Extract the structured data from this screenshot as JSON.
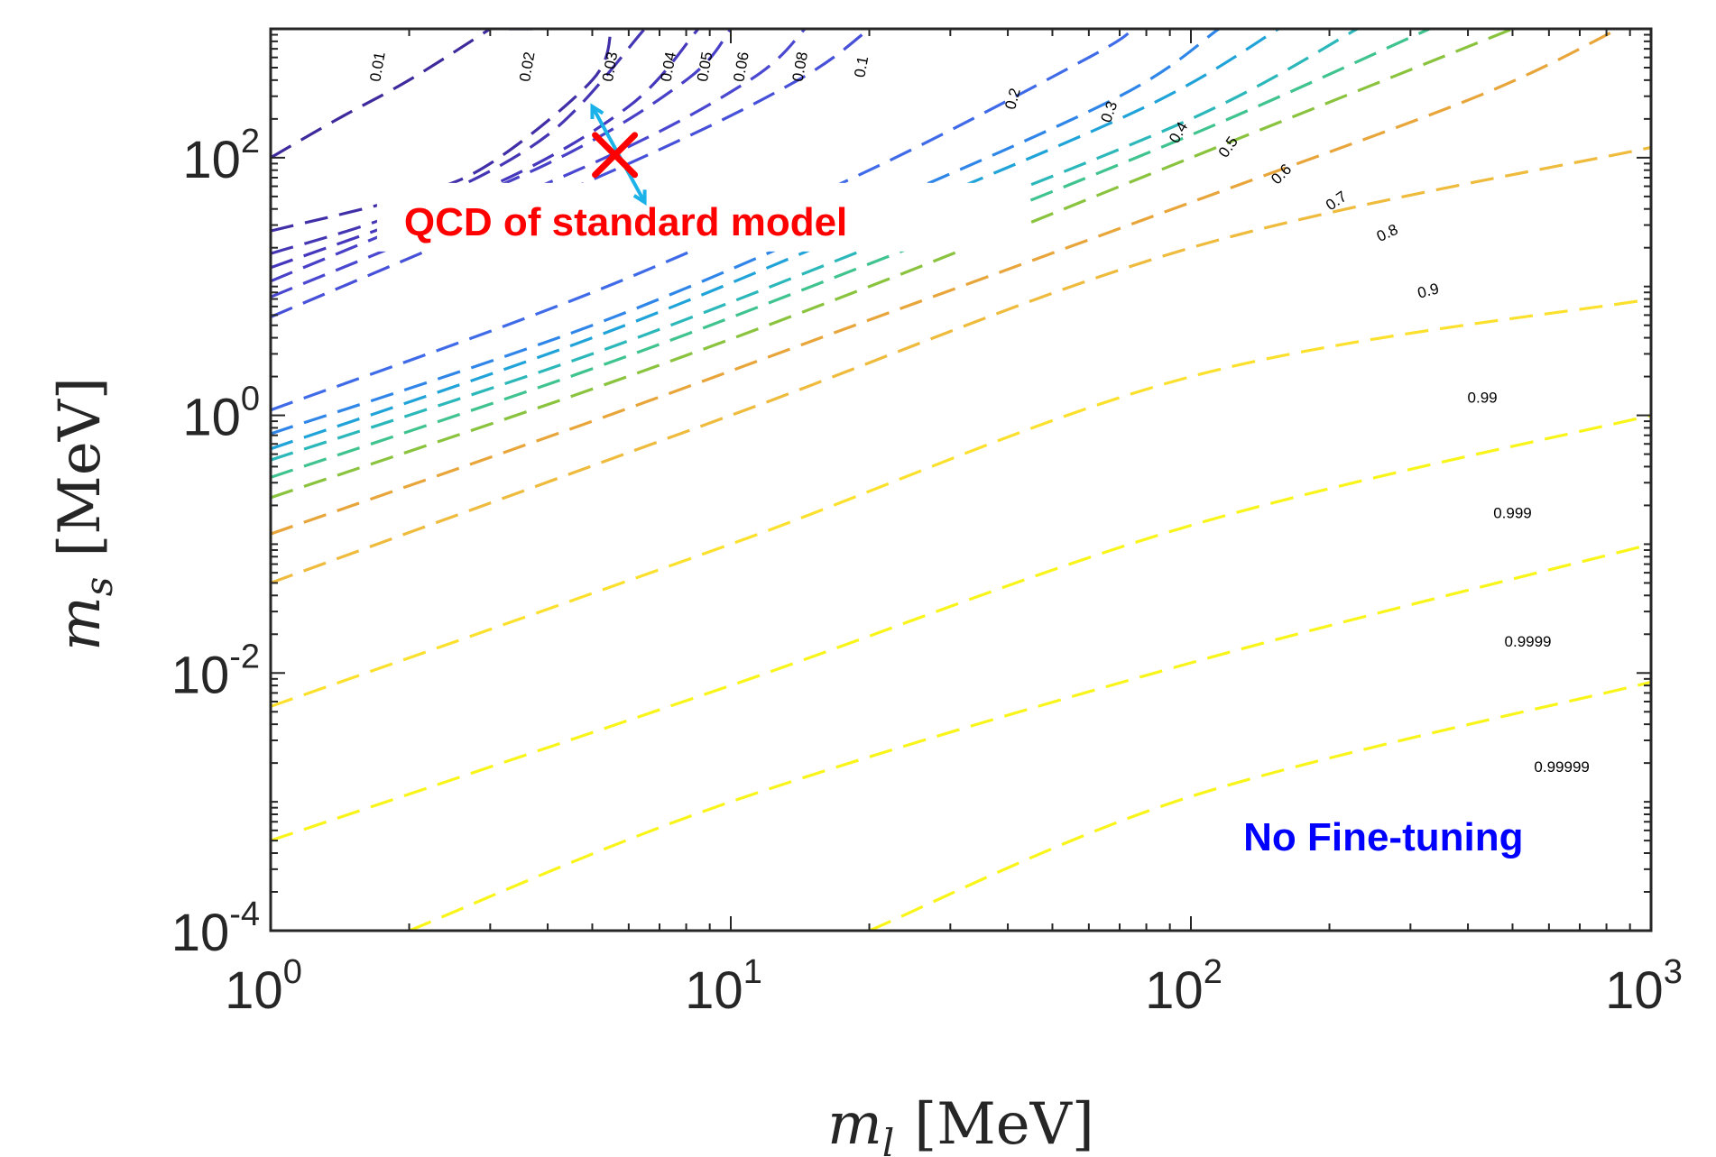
{
  "chart_data": {
    "type": "line",
    "style": "dashed contour lines on log-log axes",
    "xscale": "log",
    "yscale": "log",
    "xlim": [
      1,
      1000
    ],
    "ylim": [
      0.0001,
      1000
    ],
    "x_ticks": [
      {
        "value": 1,
        "base": "10",
        "exp": "0"
      },
      {
        "value": 10,
        "base": "10",
        "exp": "1"
      },
      {
        "value": 100,
        "base": "10",
        "exp": "2"
      },
      {
        "value": 1000,
        "base": "10",
        "exp": "3"
      }
    ],
    "y_ticks": [
      {
        "value": 0.0001,
        "base": "10",
        "exp": "-4"
      },
      {
        "value": 0.01,
        "base": "10",
        "exp": "-2"
      },
      {
        "value": 1,
        "base": "10",
        "exp": "0"
      },
      {
        "value": 100,
        "base": "10",
        "exp": "2"
      }
    ],
    "xlabel": {
      "symbol": "m",
      "sub": "l",
      "unit": "[MeV]"
    },
    "ylabel": {
      "symbol": "m",
      "sub": "s",
      "unit": "[MeV]"
    },
    "contours": [
      {
        "level": "0.01",
        "color": "#3e2a9c",
        "points": [
          [
            1,
            100
          ],
          [
            1.4,
            200
          ],
          [
            2,
            400
          ],
          [
            3,
            1000
          ]
        ]
      },
      {
        "level": "0.02",
        "color": "#3e2a9c",
        "points": [
          [
            3.3,
            1000
          ],
          [
            3.8,
            1000
          ]
        ]
      },
      {
        "level": "0.03",
        "color": "#412fa8",
        "points": [
          [
            1,
            27
          ],
          [
            2,
            50
          ],
          [
            3,
            90
          ],
          [
            5,
            400
          ],
          [
            5.5,
            1000
          ]
        ]
      },
      {
        "level": "0.04",
        "color": "#4536b4",
        "points": [
          [
            1,
            18
          ],
          [
            2,
            40
          ],
          [
            4,
            150
          ],
          [
            6.5,
            1000
          ]
        ]
      },
      {
        "level": "0.05",
        "color": "#4638bd",
        "points": [
          [
            1,
            14
          ],
          [
            3,
            60
          ],
          [
            6,
            250
          ],
          [
            8.5,
            1000
          ]
        ]
      },
      {
        "level": "0.06",
        "color": "#4840c6",
        "points": [
          [
            1,
            11
          ],
          [
            4,
            90
          ],
          [
            8,
            400
          ],
          [
            10,
            1000
          ]
        ]
      },
      {
        "level": "0.08",
        "color": "#4a48d0",
        "points": [
          [
            1,
            8.3
          ],
          [
            5,
            90
          ],
          [
            11,
            400
          ],
          [
            14.5,
            1000
          ]
        ]
      },
      {
        "level": "0.1",
        "color": "#4650d8",
        "points": [
          [
            1,
            5.8
          ],
          [
            6,
            90
          ],
          [
            14,
            400
          ],
          [
            20,
            1000
          ]
        ]
      },
      {
        "level": "0.2",
        "color": "#3f6ae8",
        "points": [
          [
            1,
            1.1
          ],
          [
            5,
            9
          ],
          [
            20,
            80
          ],
          [
            60,
            600
          ],
          [
            75,
            1000
          ]
        ]
      },
      {
        "level": "0.3",
        "color": "#2f86e8",
        "points": [
          [
            1,
            0.72
          ],
          [
            5,
            5
          ],
          [
            20,
            40
          ],
          [
            70,
            300
          ],
          [
            115,
            1000
          ]
        ]
      },
      {
        "level": "0.4",
        "color": "#1fa3d8",
        "points": [
          [
            1,
            0.55
          ],
          [
            5,
            4
          ],
          [
            20,
            30
          ],
          [
            80,
            250
          ],
          [
            155,
            1000
          ]
        ]
      },
      {
        "level": "0.5",
        "color": "#2cb8bb",
        "points": [
          [
            1,
            0.45
          ],
          [
            5,
            3
          ],
          [
            20,
            20
          ],
          [
            100,
            200
          ],
          [
            230,
            1000
          ]
        ]
      },
      {
        "level": "0.6",
        "color": "#3fc38f",
        "points": [
          [
            1,
            0.33
          ],
          [
            5,
            2.3
          ],
          [
            20,
            15
          ],
          [
            100,
            150
          ],
          [
            330,
            1000
          ]
        ]
      },
      {
        "level": "0.7",
        "color": "#8ac33e",
        "points": [
          [
            1,
            0.23
          ],
          [
            5,
            1.6
          ],
          [
            20,
            10
          ],
          [
            100,
            100
          ],
          [
            500,
            1000
          ]
        ]
      },
      {
        "level": "0.8",
        "color": "#e8a53a",
        "points": [
          [
            1,
            0.12
          ],
          [
            5,
            0.9
          ],
          [
            20,
            5.5
          ],
          [
            100,
            45
          ],
          [
            420,
            300
          ],
          [
            850,
            1000
          ]
        ]
      },
      {
        "level": "0.9",
        "color": "#efbb3c",
        "points": [
          [
            1,
            0.05
          ],
          [
            10,
            1
          ],
          [
            100,
            20
          ],
          [
            1000,
            120
          ]
        ]
      },
      {
        "level": "0.99",
        "color": "#fbe12d",
        "points": [
          [
            1,
            0.0055
          ],
          [
            10,
            0.1
          ],
          [
            100,
            2
          ],
          [
            1000,
            8
          ]
        ]
      },
      {
        "level": "0.999",
        "color": "#f9f51a",
        "points": [
          [
            1,
            0.0005
          ],
          [
            10,
            0.008
          ],
          [
            100,
            0.14
          ],
          [
            1000,
            1
          ]
        ]
      },
      {
        "level": "0.9999",
        "color": "#f9f51a",
        "points": [
          [
            2,
            0.0001
          ],
          [
            10,
            0.001
          ],
          [
            100,
            0.012
          ],
          [
            1000,
            0.1
          ]
        ]
      },
      {
        "level": "0.99999",
        "color": "#f9f51a",
        "points": [
          [
            20,
            0.0001
          ],
          [
            100,
            0.0011
          ],
          [
            1000,
            0.0085
          ]
        ]
      }
    ],
    "contour_labels": [
      {
        "text": "0.01",
        "x": 1.75,
        "y": 500,
        "angle": -80
      },
      {
        "text": "0.02",
        "x": 3.7,
        "y": 500,
        "angle": -80
      },
      {
        "text": "0.03",
        "x": 5.6,
        "y": 500,
        "angle": -80
      },
      {
        "text": "0.04",
        "x": 7.5,
        "y": 500,
        "angle": -80
      },
      {
        "text": "0.05",
        "x": 9,
        "y": 500,
        "angle": -80
      },
      {
        "text": "0.06",
        "x": 10.8,
        "y": 500,
        "angle": -80
      },
      {
        "text": "0.08",
        "x": 14.5,
        "y": 500,
        "angle": -80
      },
      {
        "text": "0.1",
        "x": 19.7,
        "y": 500,
        "angle": -80
      },
      {
        "text": "0.2",
        "x": 42,
        "y": 280,
        "angle": -75
      },
      {
        "text": "0.3",
        "x": 68,
        "y": 220,
        "angle": -70
      },
      {
        "text": "0.4",
        "x": 96,
        "y": 150,
        "angle": -60
      },
      {
        "text": "0.5",
        "x": 123,
        "y": 115,
        "angle": -55
      },
      {
        "text": "0.6",
        "x": 160,
        "y": 70,
        "angle": -45
      },
      {
        "text": "0.7",
        "x": 210,
        "y": 43,
        "angle": -35
      },
      {
        "text": "0.8",
        "x": 270,
        "y": 24,
        "angle": -25
      },
      {
        "text": "0.9",
        "x": 330,
        "y": 8.5,
        "angle": -15
      },
      {
        "text": "0.99",
        "x": 430,
        "y": 1.25,
        "angle": 0
      },
      {
        "text": "0.999",
        "x": 500,
        "y": 0.16,
        "angle": 0
      },
      {
        "text": "0.9999",
        "x": 540,
        "y": 0.016,
        "angle": 0
      },
      {
        "text": "0.99999",
        "x": 640,
        "y": 0.0017,
        "angle": 0
      }
    ],
    "marker": {
      "x": 5.6,
      "y": 105,
      "symbol": "x",
      "color": "#ff0000"
    },
    "arrows": {
      "from": [
        5,
        250
      ],
      "to": [
        6.5,
        45
      ],
      "color": "#1ab2e8"
    },
    "annotations": [
      {
        "text": "QCD of standard model",
        "x": 1.95,
        "y": 25,
        "color": "#ff0000"
      },
      {
        "text": "No Fine-tuning",
        "x": 130,
        "y": 0.00042,
        "color": "#0000ff"
      }
    ]
  }
}
